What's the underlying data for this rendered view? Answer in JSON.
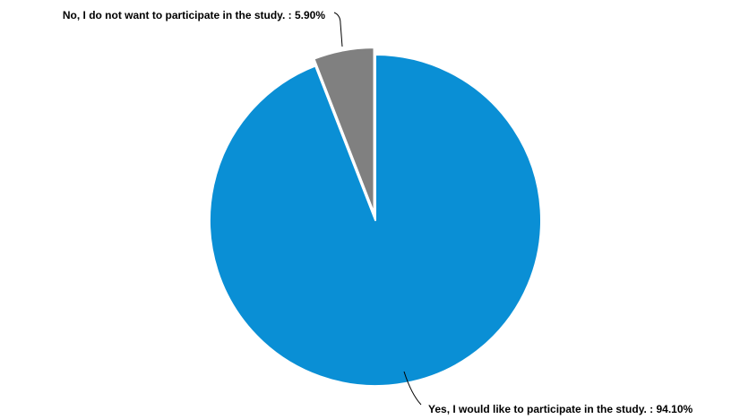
{
  "chart_data": {
    "type": "pie",
    "slices": [
      {
        "label": "Yes, I would like to participate in the study.",
        "value": 94.1,
        "display": "Yes, I would like to participate in the study. : 94.10%",
        "color": "#0a8fd5"
      },
      {
        "label": "No, I do not want to participate in the study.",
        "value": 5.9,
        "display": "No, I do not want to participate in the study. : 5.90%",
        "color": "#808080",
        "exploded": true
      }
    ],
    "start_angle": "12 o'clock",
    "direction": "clockwise",
    "legend": "none"
  }
}
